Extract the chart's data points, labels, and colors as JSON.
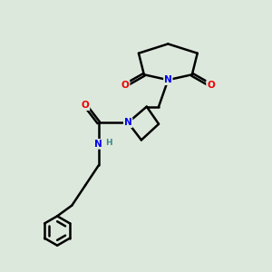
{
  "background_color": "#dce8dc",
  "bond_color": "#000000",
  "atom_colors": {
    "N": "#0000ee",
    "O": "#ee0000",
    "H": "#3a8a8a",
    "C": "#000000"
  },
  "figsize": [
    3.0,
    3.0
  ],
  "dpi": 100
}
